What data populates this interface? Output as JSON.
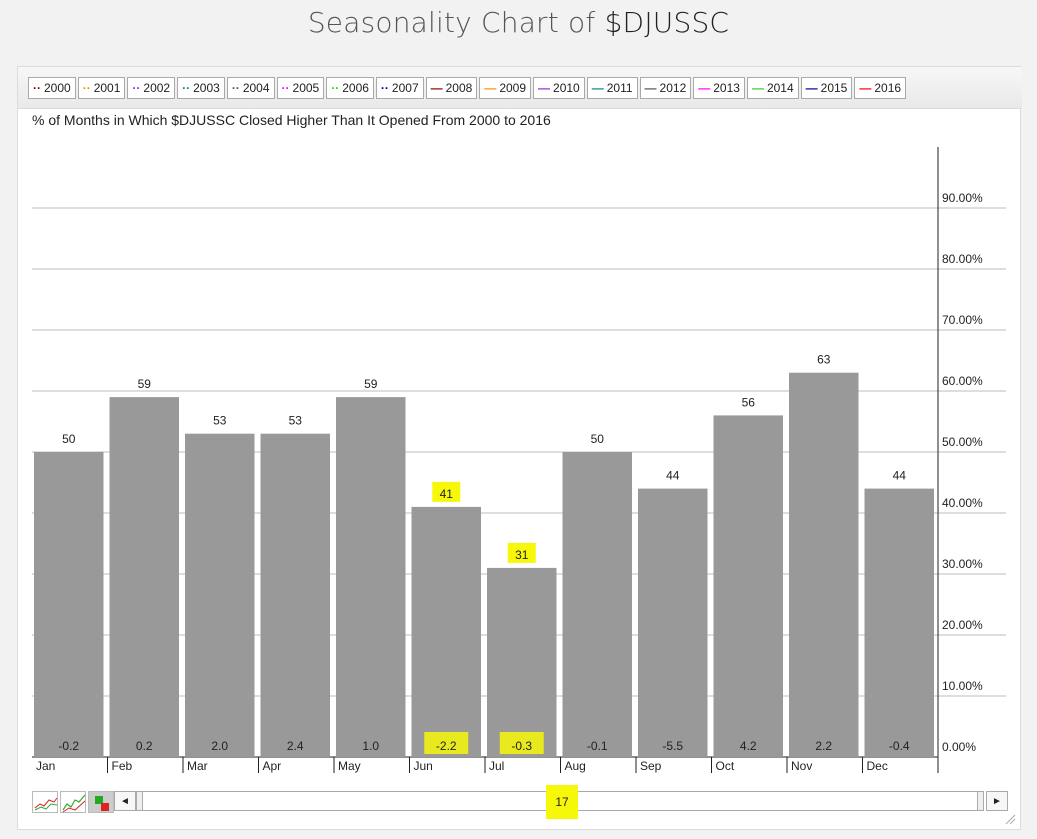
{
  "header": {
    "title_prefix": "Seasonality Chart of ",
    "symbol": "$DJUSSC"
  },
  "legend": [
    {
      "label": "2000",
      "color": "#8b0000",
      "style": "dotted"
    },
    {
      "label": "2001",
      "color": "#ff8c00",
      "style": "dotted"
    },
    {
      "label": "2002",
      "color": "#8a2be2",
      "style": "dotted"
    },
    {
      "label": "2003",
      "color": "#008b8b",
      "style": "dotted"
    },
    {
      "label": "2004",
      "color": "#555555",
      "style": "dotted"
    },
    {
      "label": "2005",
      "color": "#ff00ff",
      "style": "dotted"
    },
    {
      "label": "2006",
      "color": "#32cd32",
      "style": "dotted"
    },
    {
      "label": "2007",
      "color": "#00008b",
      "style": "dotted"
    },
    {
      "label": "2008",
      "color": "#8b0000",
      "style": "solid"
    },
    {
      "label": "2009",
      "color": "#ff8c00",
      "style": "solid"
    },
    {
      "label": "2010",
      "color": "#8a2be2",
      "style": "solid"
    },
    {
      "label": "2011",
      "color": "#008b8b",
      "style": "solid"
    },
    {
      "label": "2012",
      "color": "#555555",
      "style": "solid"
    },
    {
      "label": "2013",
      "color": "#ff00ff",
      "style": "solid"
    },
    {
      "label": "2014",
      "color": "#32cd32",
      "style": "solid"
    },
    {
      "label": "2015",
      "color": "#00008b",
      "style": "solid"
    },
    {
      "label": "2016",
      "color": "#ff0000",
      "style": "solid"
    }
  ],
  "chart_data": {
    "type": "bar",
    "title": "% of Months in Which $DJUSSC Closed Higher Than It Opened From 2000 to 2016",
    "categories": [
      "Jan",
      "Feb",
      "Mar",
      "Apr",
      "May",
      "Jun",
      "Jul",
      "Aug",
      "Sep",
      "Oct",
      "Nov",
      "Dec"
    ],
    "values": [
      50,
      59,
      53,
      53,
      59,
      41,
      31,
      50,
      44,
      56,
      63,
      44
    ],
    "avg_return": [
      "-0.2",
      "0.2",
      "2.0",
      "2.4",
      "1.0",
      "-2.2",
      "-0.3",
      "-0.1",
      "-5.5",
      "4.2",
      "2.2",
      "-0.4"
    ],
    "highlighted_values": [
      "Jun",
      "Jul"
    ],
    "highlighted_returns": [
      "Jun",
      "Jul"
    ],
    "ylim": [
      0,
      100
    ],
    "yticks": [
      "0.00%",
      "10.00%",
      "20.00%",
      "30.00%",
      "40.00%",
      "50.00%",
      "60.00%",
      "70.00%",
      "80.00%",
      "90.00%"
    ],
    "bar_color": "#999999",
    "highlight_color": "#f7f70a",
    "grid": true
  },
  "scroll": {
    "value": "17",
    "left_arrow": "◄",
    "right_arrow": "►"
  }
}
